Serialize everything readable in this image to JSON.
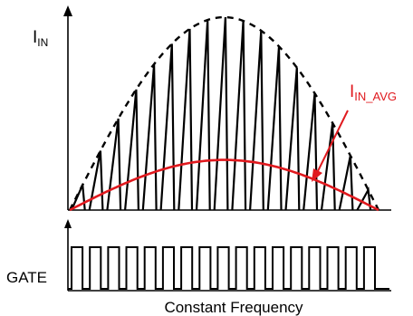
{
  "labels": {
    "iin_main": "I",
    "iin_sub": "IN",
    "iavg_main": "I",
    "iavg_sub": "IN_AVG",
    "gate": "GATE",
    "xlabel": "Constant Frequency"
  },
  "colors": {
    "ink": "#000000",
    "avg": "#e0191e",
    "background": "#ffffff"
  },
  "chart_data": {
    "type": "line",
    "series": [
      {
        "name": "I_IN",
        "kind": "triangular current pulses under a sinusoidal envelope",
        "pulse_count": 17
      },
      {
        "name": "I_IN_AVG",
        "kind": "average current, half-sine"
      },
      {
        "name": "GATE",
        "kind": "square wave at constant frequency",
        "pulse_count": 17
      }
    ],
    "envelope": "half-sine, dashed",
    "avg_peak_ratio": 0.26,
    "grid": false
  }
}
